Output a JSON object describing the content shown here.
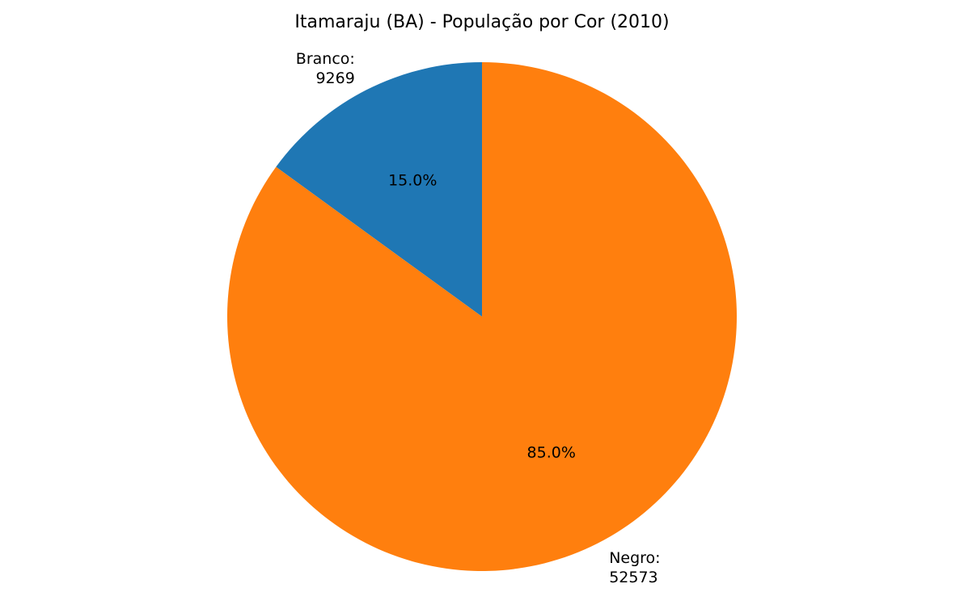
{
  "chart_data": {
    "type": "pie",
    "title": "Itamaraju (BA) - População por Cor (2010)",
    "slices": [
      {
        "category": "Branco",
        "value": 9269,
        "percent_label": "15.0%",
        "color": "#1f77b4"
      },
      {
        "category": "Negro",
        "value": 52573,
        "percent_label": "85.0%",
        "color": "#ff7f0e"
      }
    ],
    "start_angle": "top",
    "direction": "counterclockwise",
    "legend": "none"
  }
}
